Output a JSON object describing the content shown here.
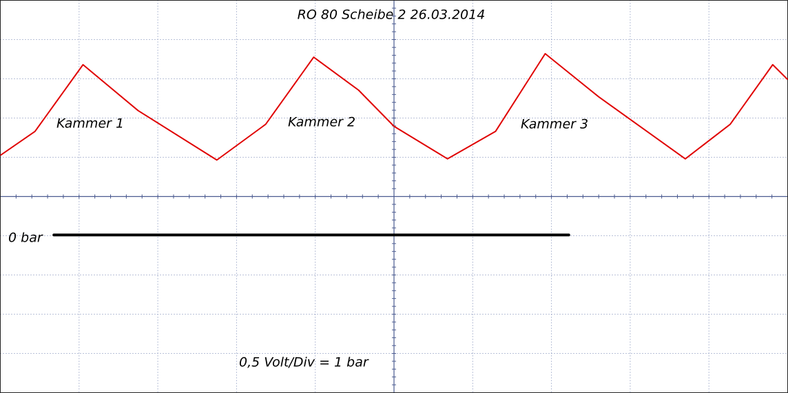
{
  "chart_data": {
    "type": "line",
    "title": "RO 80    Scheibe 2    26.03.2014",
    "annotations": [
      "Kammer 1",
      "Kammer 2",
      "Kammer 3",
      "0,5 Volt/Div = 1 bar"
    ],
    "x": [
      0,
      0.44,
      1.05,
      1.75,
      2.75,
      3.37,
      3.98,
      4.55,
      5.0,
      5.68,
      6.29,
      6.92,
      7.6,
      8.7,
      9.27,
      9.81,
      10
    ],
    "series": [
      {
        "color": "#e00000",
        "values": [
          1.05,
          1.66,
          3.36,
          2.19,
          0.93,
          1.84,
          3.55,
          2.71,
          1.79,
          0.96,
          1.66,
          3.64,
          2.54,
          0.96,
          1.84,
          3.36,
          2.98
        ]
      }
    ],
    "reference_line": {
      "label": "0 bar",
      "y": -0.98,
      "x": [
        0.68,
        7.22
      ],
      "color": "#000000"
    },
    "xlim": [
      0,
      10
    ],
    "ylim": [
      -5,
      5
    ],
    "xticks": [
      0,
      1,
      2,
      3,
      4,
      5,
      6,
      7,
      8,
      9,
      10
    ],
    "yticks": [
      -5,
      -4,
      -3,
      -2,
      -1,
      0,
      1,
      2,
      3,
      4,
      5
    ],
    "grid": true
  }
}
